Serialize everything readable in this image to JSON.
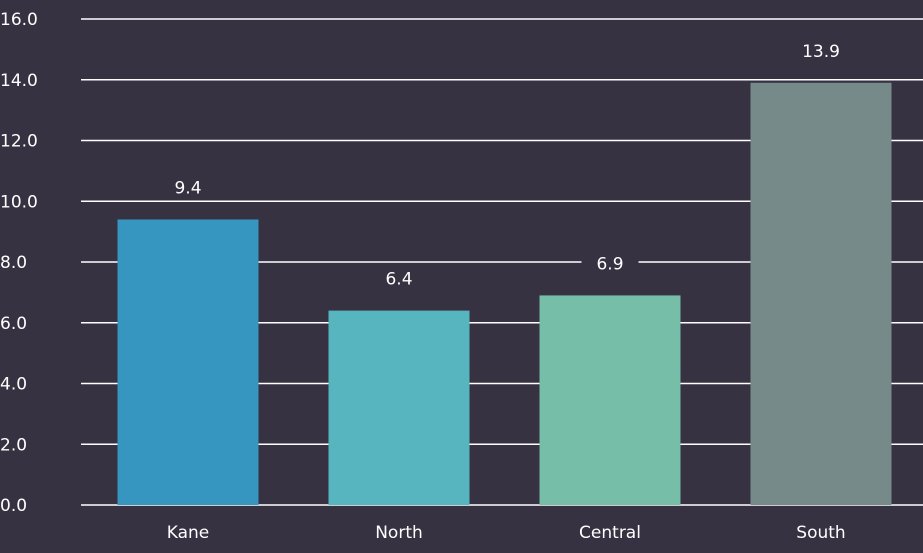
{
  "colors": {
    "background": "#363241",
    "gridline": "#ffffff",
    "text": "#ffffff",
    "label_backdrop": "#363241"
  },
  "chart_data": {
    "type": "bar",
    "title": "",
    "xlabel": "",
    "ylabel": "",
    "categories": [
      "Kane",
      "North",
      "Central",
      "South"
    ],
    "values": [
      9.4,
      6.4,
      6.9,
      13.9
    ],
    "value_labels": [
      "9.4",
      "6.4",
      "6.9",
      "13.9"
    ],
    "bar_colors": [
      "#3696bf",
      "#56b5bf",
      "#77bea9",
      "#778a8a"
    ],
    "ylim": [
      0,
      16
    ],
    "y_ticks": [
      "0.0",
      "2.0",
      "4.0",
      "6.0",
      "8.0",
      "10.0",
      "12.0",
      "14.0",
      "16.0"
    ],
    "grid": true,
    "legend": "none"
  }
}
